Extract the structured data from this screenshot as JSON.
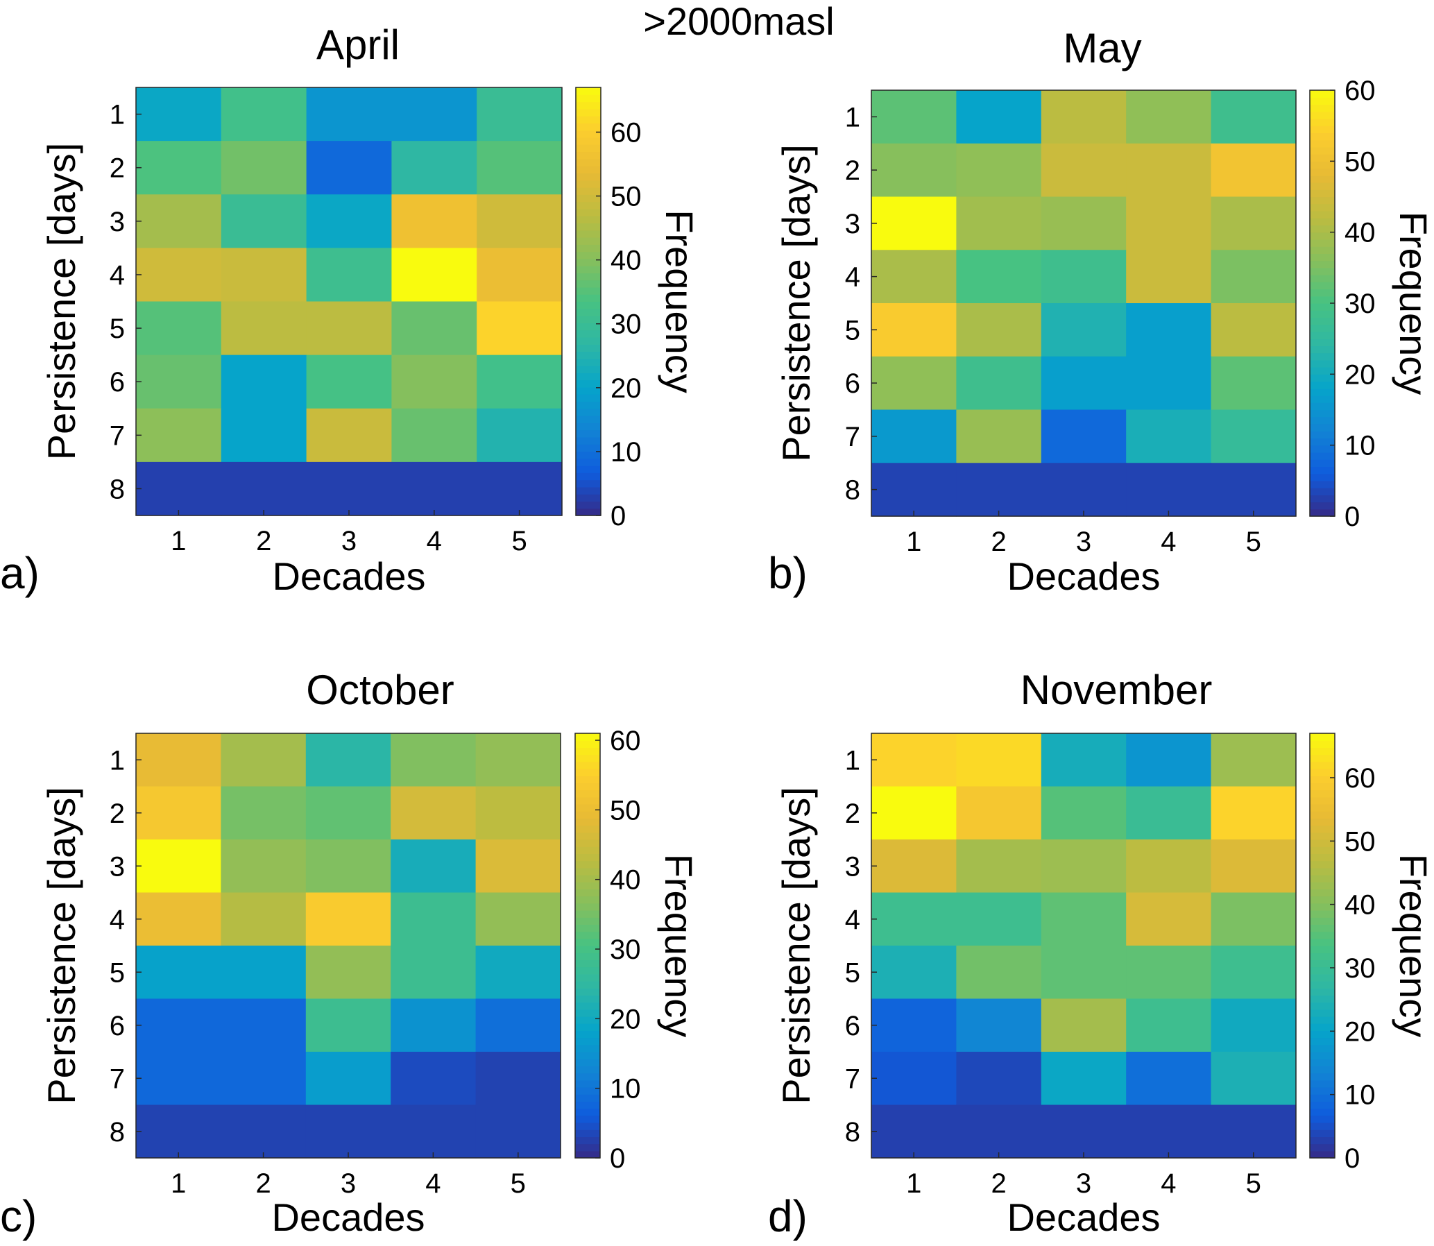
{
  "figure": {
    "suptitle": ">2000masl"
  },
  "chart_data": [
    {
      "type": "heatmap",
      "panel_label": "a)",
      "title": "April",
      "xlabel": "Decades",
      "ylabel": "Persistence [days]",
      "colorbar_label": "Frequency",
      "colormap": "parula",
      "x_categories": [
        "1",
        "2",
        "3",
        "4",
        "5"
      ],
      "y_categories": [
        "1",
        "2",
        "3",
        "4",
        "5",
        "6",
        "7",
        "8"
      ],
      "clim": [
        0,
        67
      ],
      "colorbar_ticks": [
        "0",
        "10",
        "20",
        "30",
        "40",
        "50",
        "60"
      ],
      "values": [
        [
          21,
          32,
          17,
          17,
          30
        ],
        [
          34,
          38,
          9,
          27,
          35
        ],
        [
          44,
          30,
          21,
          56,
          50
        ],
        [
          50,
          49,
          31,
          67,
          55
        ],
        [
          35,
          47,
          47,
          37,
          61
        ],
        [
          37,
          20,
          33,
          40,
          32
        ],
        [
          41,
          20,
          49,
          37,
          25
        ],
        [
          3,
          3,
          3,
          3,
          3
        ]
      ]
    },
    {
      "type": "heatmap",
      "panel_label": "b)",
      "title": "May",
      "xlabel": "Decades",
      "ylabel": "Persistence [days]",
      "colorbar_label": "Frequency",
      "colormap": "parula",
      "x_categories": [
        "1",
        "2",
        "3",
        "4",
        "5"
      ],
      "y_categories": [
        "1",
        "2",
        "3",
        "4",
        "5",
        "6",
        "7",
        "8"
      ],
      "clim": [
        0,
        60
      ],
      "colorbar_ticks": [
        "0",
        "10",
        "20",
        "30",
        "40",
        "50",
        "60"
      ],
      "values": [
        [
          32,
          18,
          42,
          37,
          28
        ],
        [
          36,
          37,
          44,
          44,
          51
        ],
        [
          60,
          39,
          38,
          44,
          40
        ],
        [
          40,
          30,
          28,
          44,
          35
        ],
        [
          53,
          40,
          22,
          17,
          42
        ],
        [
          37,
          28,
          17,
          17,
          32
        ],
        [
          16,
          38,
          8,
          21,
          26
        ],
        [
          3,
          3,
          3,
          3,
          3
        ]
      ]
    },
    {
      "type": "heatmap",
      "panel_label": "c)",
      "title": "October",
      "xlabel": "Decades",
      "ylabel": "Persistence [days]",
      "colorbar_label": "Frequency",
      "colormap": "parula",
      "x_categories": [
        "1",
        "2",
        "3",
        "4",
        "5"
      ],
      "y_categories": [
        "1",
        "2",
        "3",
        "4",
        "5",
        "6",
        "7",
        "8"
      ],
      "clim": [
        0,
        61
      ],
      "colorbar_ticks": [
        "0",
        "10",
        "20",
        "30",
        "40",
        "50",
        "60"
      ],
      "values": [
        [
          49,
          40,
          24,
          36,
          38
        ],
        [
          53,
          35,
          33,
          46,
          43
        ],
        [
          61,
          38,
          36,
          21,
          47
        ],
        [
          50,
          42,
          54,
          28,
          38
        ],
        [
          18,
          18,
          38,
          28,
          20
        ],
        [
          8,
          8,
          28,
          15,
          9
        ],
        [
          8,
          8,
          17,
          4,
          3
        ],
        [
          3,
          3,
          3,
          3,
          3
        ]
      ]
    },
    {
      "type": "heatmap",
      "panel_label": "d)",
      "title": "November",
      "xlabel": "Decades",
      "ylabel": "Persistence [days]",
      "colorbar_label": "Frequency",
      "colormap": "parula",
      "x_categories": [
        "1",
        "2",
        "3",
        "4",
        "5"
      ],
      "y_categories": [
        "1",
        "2",
        "3",
        "4",
        "5",
        "6",
        "7",
        "8"
      ],
      "clim": [
        0,
        67
      ],
      "colorbar_ticks": [
        "0",
        "10",
        "20",
        "30",
        "40",
        "50",
        "60"
      ],
      "values": [
        [
          61,
          62,
          23,
          17,
          43
        ],
        [
          67,
          58,
          35,
          30,
          61
        ],
        [
          52,
          44,
          43,
          47,
          52
        ],
        [
          31,
          31,
          36,
          51,
          39
        ],
        [
          24,
          38,
          36,
          36,
          31
        ],
        [
          8,
          14,
          44,
          31,
          22
        ],
        [
          6,
          4,
          21,
          10,
          24
        ],
        [
          3,
          3,
          3,
          3,
          3
        ]
      ]
    }
  ]
}
